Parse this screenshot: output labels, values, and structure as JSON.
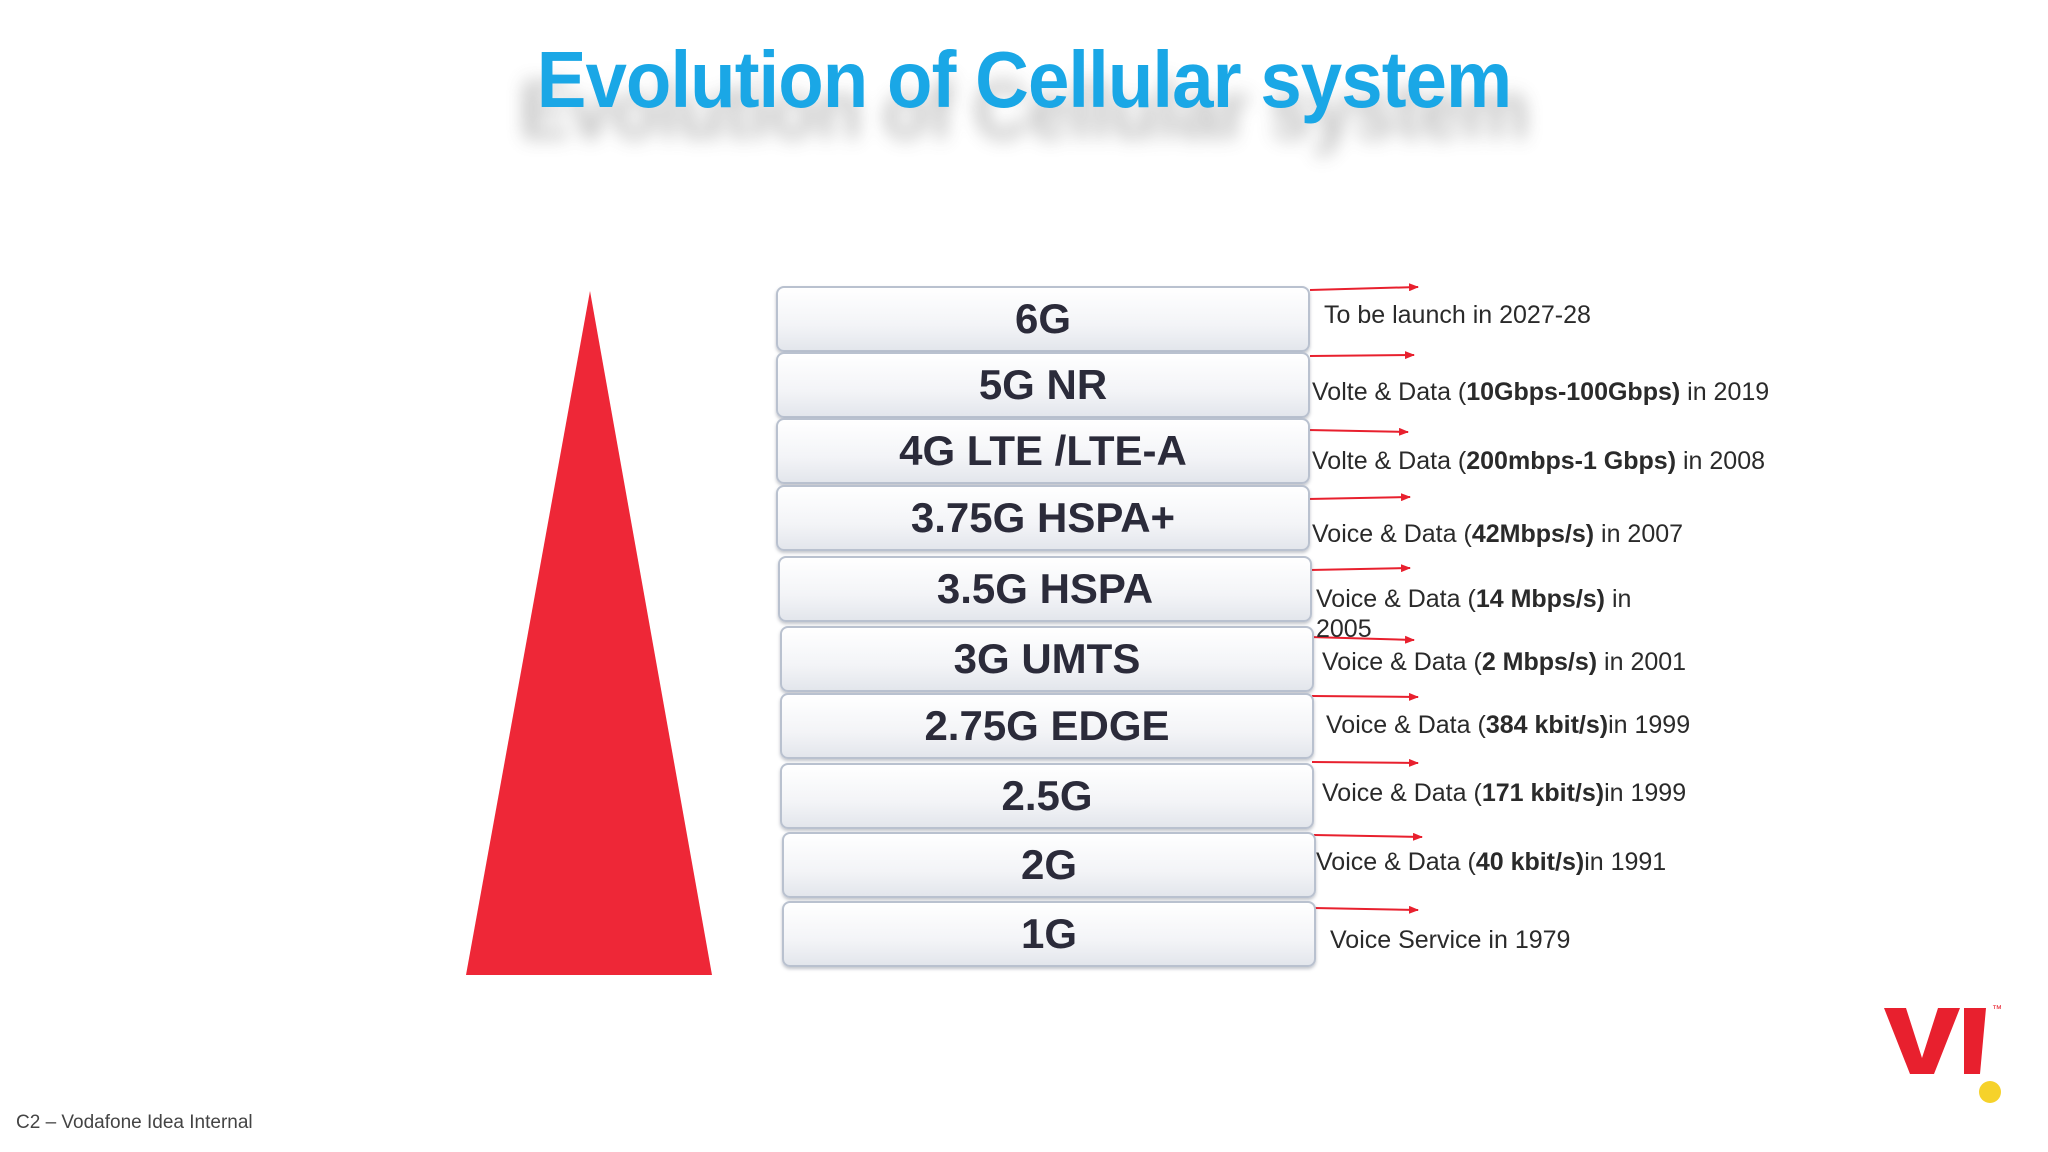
{
  "title": "Evolution of Cellular system",
  "generations": [
    {
      "label": "6G",
      "desc_pre": "To be launch  in 2027-28",
      "desc_bold": "",
      "desc_post": ""
    },
    {
      "label": "5G NR",
      "desc_pre": "Volte & Data (",
      "desc_bold": "10Gbps-100Gbps)",
      "desc_post": " in 2019"
    },
    {
      "label": "4G LTE /LTE-A",
      "desc_pre": "Volte & Data (",
      "desc_bold": "200mbps-1 Gbps)",
      "desc_post": " in 2008"
    },
    {
      "label": "3.75G HSPA+",
      "desc_pre": "Voice & Data (",
      "desc_bold": "42Mbps/s)",
      "desc_post": " in 2007"
    },
    {
      "label": "3.5G HSPA",
      "desc_pre": "Voice & Data (",
      "desc_bold": "14 Mbps/s)",
      "desc_post": " in 2005"
    },
    {
      "label": "3G UMTS",
      "desc_pre": "Voice & Data (",
      "desc_bold": "2 Mbps/s)",
      "desc_post": " in 2001"
    },
    {
      "label": "2.75G EDGE",
      "desc_pre": "Voice & Data (",
      "desc_bold": "384 kbit/s)",
      "desc_post": "in 1999"
    },
    {
      "label": "2.5G",
      "desc_pre": "Voice & Data (",
      "desc_bold": "171 kbit/s)",
      "desc_post": "in 1999"
    },
    {
      "label": "2G",
      "desc_pre": "Voice & Data (",
      "desc_bold": "40 kbit/s)",
      "desc_post": "in 1991"
    },
    {
      "label": "1G",
      "desc_pre": "Voice Service in 1979",
      "desc_bold": "",
      "desc_post": ""
    }
  ],
  "footer": "C2 – Vodafone Idea Internal",
  "logo": {
    "text": "VI",
    "trademark": "™"
  },
  "colors": {
    "title": "#1aa7e6",
    "pyramid": "#ee2737",
    "arrow": "#e8202e",
    "logo_dot": "#f6d22a"
  }
}
